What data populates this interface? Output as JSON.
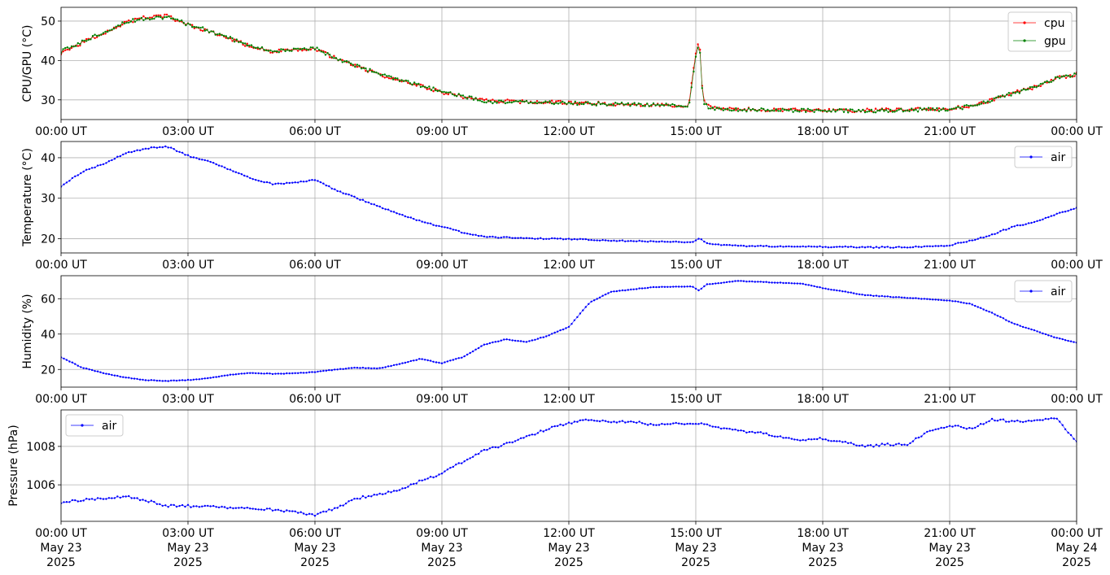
{
  "chart_data": [
    {
      "type": "line",
      "ylabel": "CPU/GPU (°C)",
      "ylim": [
        25,
        53.5
      ],
      "yticks": [
        30,
        40,
        50
      ],
      "xlim": [
        "2025-05-23T00:00",
        "2025-05-24T00:00"
      ],
      "xtick_labels": [
        "00:00 UT",
        "03:00 UT",
        "06:00 UT",
        "09:00 UT",
        "12:00 UT",
        "15:00 UT",
        "18:00 UT",
        "21:00 UT",
        "00:00 UT"
      ],
      "grid": true,
      "legend": "upper right",
      "series": [
        {
          "name": "cpu",
          "color": "#ff0000",
          "x": [
            "00:00",
            "00:30",
            "01:00",
            "01:30",
            "02:00",
            "02:30",
            "03:00",
            "03:30",
            "04:00",
            "04:30",
            "05:00",
            "05:30",
            "06:00",
            "06:30",
            "07:00",
            "07:30",
            "08:00",
            "08:30",
            "09:00",
            "09:30",
            "10:00",
            "11:00",
            "12:00",
            "13:00",
            "14:00",
            "14:50",
            "15:00",
            "15:05",
            "15:10",
            "15:20",
            "16:00",
            "17:00",
            "18:00",
            "19:00",
            "20:00",
            "21:00",
            "21:30",
            "22:00",
            "22:30",
            "23:00",
            "23:30",
            "24:00"
          ],
          "values": [
            42,
            44.5,
            47,
            49.5,
            51,
            51.3,
            49,
            47.3,
            45.5,
            43.5,
            42.3,
            42.5,
            43,
            40.5,
            38.5,
            36.5,
            34.8,
            33.5,
            32,
            30.8,
            29.8,
            29.5,
            29.3,
            29,
            28.8,
            28.5,
            42,
            46,
            30,
            28,
            27.6,
            27.5,
            27.3,
            27.3,
            27.5,
            27.7,
            28.5,
            30,
            31.8,
            33.2,
            35.5,
            36.5
          ]
        },
        {
          "name": "gpu",
          "color": "#008000",
          "x": [
            "00:00",
            "00:30",
            "01:00",
            "01:30",
            "02:00",
            "02:30",
            "03:00",
            "03:30",
            "04:00",
            "04:30",
            "05:00",
            "05:30",
            "06:00",
            "06:30",
            "07:00",
            "07:30",
            "08:00",
            "08:30",
            "09:00",
            "09:30",
            "10:00",
            "11:00",
            "12:00",
            "13:00",
            "14:00",
            "14:50",
            "15:00",
            "15:05",
            "15:10",
            "15:20",
            "16:00",
            "17:00",
            "18:00",
            "19:00",
            "20:00",
            "21:00",
            "21:30",
            "22:00",
            "22:30",
            "23:00",
            "23:30",
            "24:00"
          ],
          "values": [
            42.2,
            44.7,
            47.2,
            49.7,
            50.8,
            51,
            49.2,
            47.5,
            45.6,
            43.6,
            42.4,
            42.6,
            43.1,
            40.6,
            38.6,
            36.6,
            34.9,
            33.6,
            32.1,
            30.9,
            29.6,
            29.4,
            29.2,
            28.9,
            28.7,
            28.4,
            41,
            45,
            29.5,
            27.8,
            27.5,
            27.4,
            27.3,
            27.2,
            27.4,
            27.6,
            28.4,
            29.9,
            31.7,
            33.1,
            35.4,
            36.4
          ]
        }
      ]
    },
    {
      "type": "line",
      "ylabel": "Temperature (°C)",
      "ylim": [
        16.5,
        44
      ],
      "yticks": [
        20,
        30,
        40
      ],
      "xlim": [
        "2025-05-23T00:00",
        "2025-05-24T00:00"
      ],
      "xtick_labels": [
        "00:00 UT",
        "03:00 UT",
        "06:00 UT",
        "09:00 UT",
        "12:00 UT",
        "15:00 UT",
        "18:00 UT",
        "21:00 UT",
        "00:00 UT"
      ],
      "grid": true,
      "legend": "upper right",
      "series": [
        {
          "name": "air",
          "color": "#0000ff",
          "x": [
            "00:00",
            "00:30",
            "01:00",
            "01:30",
            "02:00",
            "02:30",
            "03:00",
            "03:30",
            "04:00",
            "04:30",
            "05:00",
            "05:30",
            "06:00",
            "06:30",
            "07:00",
            "07:30",
            "08:00",
            "08:30",
            "09:00",
            "09:30",
            "10:00",
            "11:00",
            "12:00",
            "13:00",
            "14:00",
            "14:55",
            "15:05",
            "15:15",
            "16:00",
            "17:00",
            "18:00",
            "19:00",
            "20:00",
            "21:00",
            "21:30",
            "22:00",
            "22:30",
            "23:00",
            "23:30",
            "24:00"
          ],
          "values": [
            33,
            36.5,
            38.5,
            41,
            42.3,
            42.8,
            40.5,
            39,
            37,
            34.8,
            33.5,
            33.8,
            34.5,
            32,
            30,
            28,
            26,
            24.3,
            23,
            21.5,
            20.5,
            20.1,
            19.9,
            19.6,
            19.3,
            19.2,
            20.1,
            18.8,
            18.2,
            18.1,
            18.0,
            17.9,
            17.9,
            18.4,
            19.5,
            21,
            23,
            24,
            26,
            27.5
          ]
        }
      ]
    },
    {
      "type": "line",
      "ylabel": "Humidity (%)",
      "ylim": [
        10,
        73
      ],
      "yticks": [
        20,
        40,
        60
      ],
      "xlim": [
        "2025-05-23T00:00",
        "2025-05-24T00:00"
      ],
      "xtick_labels": [
        "00:00 UT",
        "03:00 UT",
        "06:00 UT",
        "09:00 UT",
        "12:00 UT",
        "15:00 UT",
        "18:00 UT",
        "21:00 UT",
        "00:00 UT"
      ],
      "grid": true,
      "legend": "upper right",
      "series": [
        {
          "name": "air",
          "color": "#0000ff",
          "x": [
            "00:00",
            "00:30",
            "01:00",
            "01:30",
            "02:00",
            "02:30",
            "03:00",
            "03:30",
            "04:00",
            "04:30",
            "05:00",
            "05:30",
            "06:00",
            "06:30",
            "07:00",
            "07:30",
            "08:00",
            "08:30",
            "09:00",
            "09:30",
            "10:00",
            "10:30",
            "11:00",
            "11:30",
            "12:00",
            "12:30",
            "13:00",
            "14:00",
            "14:55",
            "15:05",
            "15:15",
            "16:00",
            "17:00",
            "17:30",
            "18:00",
            "19:00",
            "20:00",
            "21:00",
            "21:30",
            "22:00",
            "22:30",
            "23:00",
            "23:30",
            "24:00"
          ],
          "values": [
            27,
            21,
            18,
            15.5,
            14,
            13.5,
            14,
            15,
            17,
            18,
            17.5,
            17.8,
            18.5,
            20,
            21,
            20.5,
            23,
            26,
            23.5,
            27,
            34,
            37,
            35.5,
            39,
            44,
            58,
            64,
            66.5,
            67,
            64.5,
            68,
            70,
            69,
            68.5,
            66,
            62,
            60.5,
            59,
            57,
            52,
            46,
            42,
            38,
            35
          ]
        }
      ]
    },
    {
      "type": "line",
      "ylabel": "Pressure (hPa)",
      "ylim": [
        1004.1,
        1009.9
      ],
      "yticks": [
        1006,
        1008
      ],
      "xlim": [
        "2025-05-23T00:00",
        "2025-05-24T00:00"
      ],
      "xtick_labels": [
        "00:00 UT",
        "03:00 UT",
        "06:00 UT",
        "09:00 UT",
        "12:00 UT",
        "15:00 UT",
        "18:00 UT",
        "21:00 UT",
        "00:00 UT"
      ],
      "xtick_dates": [
        "May 23",
        "May 23",
        "May 23",
        "May 23",
        "May 23",
        "May 23",
        "May 23",
        "May 23",
        "May 24"
      ],
      "xtick_years": [
        "2025",
        "2025",
        "2025",
        "2025",
        "2025",
        "2025",
        "2025",
        "2025",
        "2025"
      ],
      "grid": true,
      "legend": "upper left",
      "series": [
        {
          "name": "air",
          "color": "#0000ff",
          "x": [
            "00:00",
            "00:30",
            "01:00",
            "01:30",
            "02:00",
            "02:30",
            "03:00",
            "03:30",
            "04:00",
            "04:30",
            "05:00",
            "05:30",
            "06:00",
            "06:30",
            "07:00",
            "07:30",
            "08:00",
            "08:30",
            "09:00",
            "09:30",
            "10:00",
            "10:30",
            "11:00",
            "11:30",
            "12:00",
            "12:30",
            "13:00",
            "13:30",
            "14:00",
            "14:30",
            "15:00",
            "15:30",
            "16:00",
            "16:30",
            "17:00",
            "17:30",
            "18:00",
            "18:30",
            "19:00",
            "19:30",
            "20:00",
            "20:30",
            "21:00",
            "21:30",
            "22:00",
            "22:30",
            "23:00",
            "23:30",
            "24:00"
          ],
          "values": [
            1005.1,
            1005.2,
            1005.3,
            1005.4,
            1005.2,
            1004.9,
            1004.9,
            1004.85,
            1004.8,
            1004.75,
            1004.7,
            1004.6,
            1004.4,
            1004.8,
            1005.3,
            1005.5,
            1005.7,
            1006.2,
            1006.6,
            1007.2,
            1007.8,
            1008.1,
            1008.5,
            1008.9,
            1009.2,
            1009.4,
            1009.3,
            1009.3,
            1009.1,
            1009.2,
            1009.2,
            1009.0,
            1008.8,
            1008.7,
            1008.5,
            1008.3,
            1008.4,
            1008.2,
            1008.0,
            1008.1,
            1008.1,
            1008.8,
            1009.1,
            1008.9,
            1009.4,
            1009.3,
            1009.3,
            1009.5,
            1008.2
          ]
        }
      ]
    }
  ]
}
